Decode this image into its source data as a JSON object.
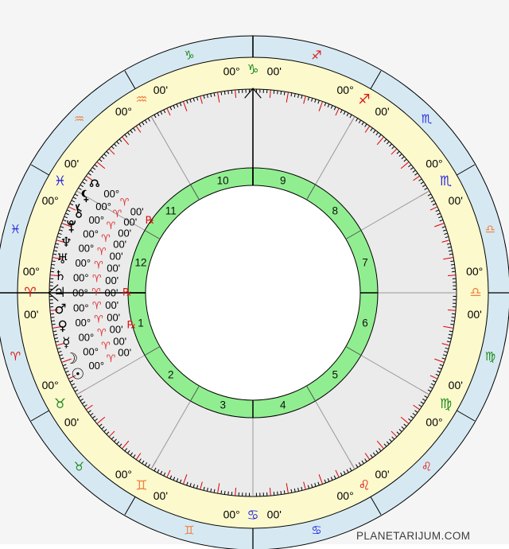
{
  "page": {
    "watermark": "PLANETARIJUM.COM",
    "background": "#f5f5f5",
    "footer_background": "#ffffff"
  },
  "wheel": {
    "degree_label": "00°",
    "minute_label": "00'",
    "colors": {
      "outer_ring": "#d6e9f2",
      "sign_ring": "#fcf9cc",
      "chart_area": "#ebebeb",
      "house_ring": "#90ee90",
      "center_circle": "#ffffff",
      "stroke": "#000000",
      "cusp_line": "#999999",
      "tick_minor": "#000000",
      "tick_major": "#dd0000",
      "fire": "#e01010",
      "earth": "#1e8a1e",
      "air": "#f0813f",
      "water": "#2828e0",
      "planet_sign": "#e03030",
      "label": "#000000",
      "retrograde": "#dd1111"
    },
    "signs": [
      {
        "name": "aries",
        "glyph": "♈",
        "element": "fire",
        "cusp": {
          "degree": "00°",
          "minute": "00'"
        }
      },
      {
        "name": "taurus",
        "glyph": "♉",
        "element": "earth",
        "cusp": {
          "degree": "00°",
          "minute": "00'"
        }
      },
      {
        "name": "gemini",
        "glyph": "♊",
        "element": "air",
        "cusp": {
          "degree": "00°",
          "minute": "00'"
        }
      },
      {
        "name": "cancer",
        "glyph": "♋",
        "element": "water",
        "cusp": {
          "degree": "00°",
          "minute": "00'"
        }
      },
      {
        "name": "leo",
        "glyph": "♌",
        "element": "fire",
        "cusp": {
          "degree": "00°",
          "minute": "00'"
        }
      },
      {
        "name": "virgo",
        "glyph": "♍",
        "element": "earth",
        "cusp": {
          "degree": "00°",
          "minute": "00'"
        }
      },
      {
        "name": "libra",
        "glyph": "♎",
        "element": "air",
        "cusp": {
          "degree": "00°",
          "minute": "00'"
        }
      },
      {
        "name": "scorpio",
        "glyph": "♏",
        "element": "water",
        "cusp": {
          "degree": "00°",
          "minute": "00'"
        }
      },
      {
        "name": "sagittarius",
        "glyph": "♐",
        "element": "fire",
        "cusp": {
          "degree": "00°",
          "minute": "00'"
        }
      },
      {
        "name": "capricorn",
        "glyph": "♑",
        "element": "earth",
        "cusp": {
          "degree": "00°",
          "minute": "00'"
        }
      },
      {
        "name": "aquarius",
        "glyph": "♒",
        "element": "air",
        "cusp": {
          "degree": "00°",
          "minute": "00'"
        }
      },
      {
        "name": "pisces",
        "glyph": "♓",
        "element": "water",
        "cusp": {
          "degree": "00°",
          "minute": "00'"
        }
      }
    ],
    "houses": [
      "1",
      "2",
      "3",
      "4",
      "5",
      "6",
      "7",
      "8",
      "9",
      "10",
      "11",
      "12"
    ],
    "planets": [
      {
        "name": "north-node",
        "glyph": "☊",
        "degree": "00°",
        "sign": "♈",
        "minute": "00'",
        "retrograde": true
      },
      {
        "name": "lilith",
        "glyph": "⚸",
        "degree": "00°",
        "sign": "♈",
        "minute": "00'",
        "retrograde": false
      },
      {
        "name": "chiron",
        "glyph": "⚷",
        "degree": "00°",
        "sign": "♈",
        "minute": "00'",
        "retrograde": false
      },
      {
        "name": "pluto",
        "glyph": "♇",
        "degree": "00°",
        "sign": "♈",
        "minute": "00'",
        "retrograde": false
      },
      {
        "name": "neptune",
        "glyph": "♆",
        "degree": "00°",
        "sign": "♈",
        "minute": "00'",
        "retrograde": false
      },
      {
        "name": "uranus",
        "glyph": "♅",
        "degree": "00°",
        "sign": "♈",
        "minute": "00'",
        "retrograde": false
      },
      {
        "name": "saturn",
        "glyph": "♄",
        "degree": "00°",
        "sign": "♈",
        "minute": "00'",
        "retrograde": false
      },
      {
        "name": "jupiter",
        "glyph": "♃",
        "degree": "00°",
        "sign": "♈",
        "minute": "00'",
        "retrograde": true
      },
      {
        "name": "mars",
        "glyph": "♂",
        "degree": "00°",
        "sign": "♈",
        "minute": "00'",
        "retrograde": false
      },
      {
        "name": "venus",
        "glyph": "♀",
        "degree": "00°",
        "sign": "♈",
        "minute": "00'",
        "retrograde": false
      },
      {
        "name": "mercury",
        "glyph": "☿",
        "degree": "00°",
        "sign": "♈",
        "minute": "00'",
        "retrograde": true
      },
      {
        "name": "moon",
        "glyph": "☽",
        "degree": "00°",
        "sign": "♈",
        "minute": "00'",
        "retrograde": false
      },
      {
        "name": "sun",
        "glyph": "☉",
        "degree": "00°",
        "sign": "♈",
        "minute": "00'",
        "retrograde": false
      }
    ],
    "angles": [
      "ascendant",
      "midheaven",
      "descendant",
      "imum-coeli"
    ],
    "retrograde_symbol": "℞"
  }
}
